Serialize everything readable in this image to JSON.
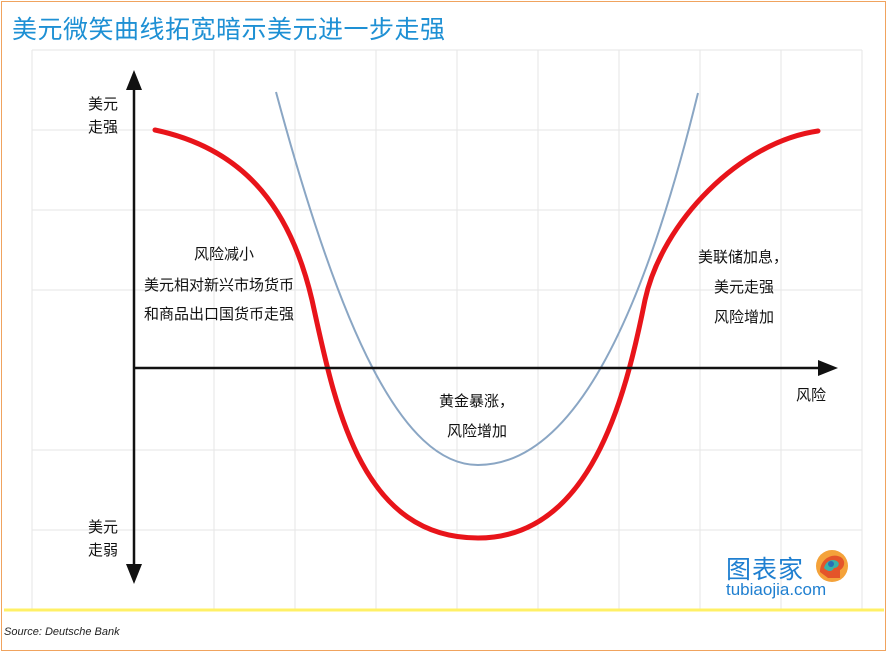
{
  "title": "美元微笑曲线拓宽暗示美元进一步走强",
  "y_axis": {
    "top_label_line1": "美元",
    "top_label_line2": "走强",
    "bottom_label_line1": "美元",
    "bottom_label_line2": "走弱"
  },
  "x_axis": {
    "label": "风险"
  },
  "annotations": {
    "left_line1": "风险减小",
    "left_line2": "美元相对新兴市场货币",
    "left_line3": "和商品出口国货币走强",
    "middle_line1": "黄金暴涨，",
    "middle_line2": "风险增加",
    "right_line1": "美联储加息，",
    "right_line2": "美元走强",
    "right_line3": "风险增加"
  },
  "colors": {
    "title": "#1e90d4",
    "dollar_smile_curve": "#e8141a",
    "widened_curve": "#8aa6c4",
    "axes": "#111111",
    "bottom_rule": "#fff066",
    "watermark": "#1f7fd0"
  },
  "source": "Source: Deutsche Bank",
  "watermark": {
    "name": "图表家",
    "url": "tubiaojia.com",
    "logo_icon": "brain-head-logo-icon"
  }
}
